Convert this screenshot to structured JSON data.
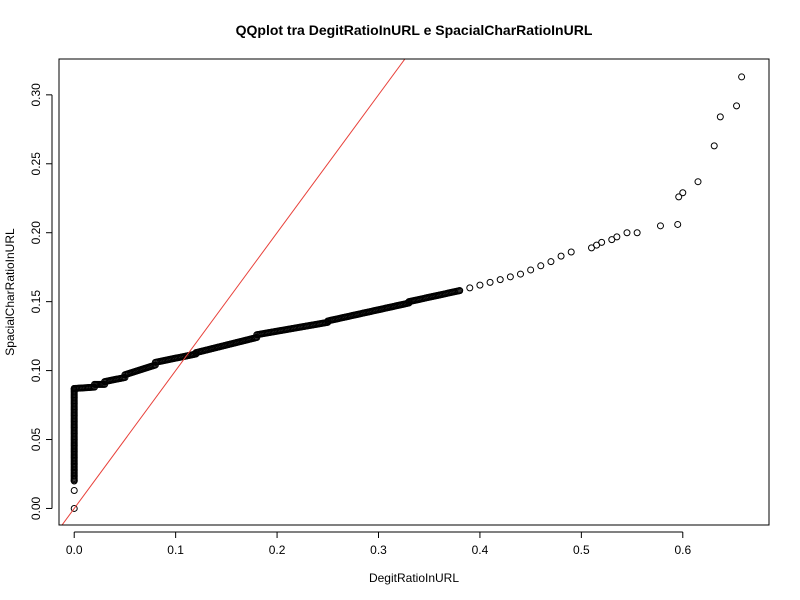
{
  "chart_data": {
    "type": "scatter",
    "title": "QQplot tra DegitRatioInURL e SpacialCharRatioInURL",
    "xlabel": "DegitRatioInURL",
    "ylabel": "SpacialCharRatioInURL",
    "xlim": [
      -0.015,
      0.685
    ],
    "ylim": [
      -0.012,
      0.326
    ],
    "x_ticks": [
      0,
      0.1,
      0.2,
      0.3,
      0.4,
      0.5,
      0.6
    ],
    "x_tick_labels": [
      "0.0",
      "0.1",
      "0.2",
      "0.3",
      "0.4",
      "0.5",
      "0.6"
    ],
    "y_ticks": [
      0,
      0.05,
      0.1,
      0.15,
      0.2,
      0.25,
      0.3
    ],
    "y_tick_labels": [
      "0.00",
      "0.05",
      "0.10",
      "0.15",
      "0.20",
      "0.25",
      "0.30"
    ],
    "grid": false,
    "reference_line": {
      "slope": 1,
      "intercept": 0,
      "color": "#e8403a"
    },
    "point_color": "#000000",
    "dense_segments": [
      {
        "x": [
          0,
          0
        ],
        "y": [
          0.02,
          0.087
        ]
      },
      {
        "x": [
          0,
          0.02
        ],
        "y": [
          0.087,
          0.088
        ]
      },
      {
        "x": [
          0.02,
          0.03
        ],
        "y": [
          0.09,
          0.09
        ]
      },
      {
        "x": [
          0.03,
          0.05
        ],
        "y": [
          0.092,
          0.095
        ]
      },
      {
        "x": [
          0.05,
          0.08
        ],
        "y": [
          0.097,
          0.104
        ]
      },
      {
        "x": [
          0.08,
          0.12
        ],
        "y": [
          0.106,
          0.112
        ]
      },
      {
        "x": [
          0.12,
          0.18
        ],
        "y": [
          0.113,
          0.124
        ]
      },
      {
        "x": [
          0.18,
          0.25
        ],
        "y": [
          0.126,
          0.135
        ]
      },
      {
        "x": [
          0.25,
          0.33
        ],
        "y": [
          0.136,
          0.149
        ]
      },
      {
        "x": [
          0.33,
          0.38
        ],
        "y": [
          0.15,
          0.158
        ]
      }
    ],
    "points": [
      [
        0,
        0
      ],
      [
        0,
        0.013
      ],
      [
        0,
        0.02
      ],
      [
        0.38,
        0.158
      ],
      [
        0.39,
        0.16
      ],
      [
        0.4,
        0.162
      ],
      [
        0.41,
        0.164
      ],
      [
        0.42,
        0.166
      ],
      [
        0.43,
        0.168
      ],
      [
        0.44,
        0.17
      ],
      [
        0.45,
        0.173
      ],
      [
        0.46,
        0.176
      ],
      [
        0.47,
        0.179
      ],
      [
        0.48,
        0.183
      ],
      [
        0.49,
        0.186
      ],
      [
        0.51,
        0.189
      ],
      [
        0.515,
        0.191
      ],
      [
        0.52,
        0.193
      ],
      [
        0.53,
        0.195
      ],
      [
        0.535,
        0.197
      ],
      [
        0.545,
        0.2
      ],
      [
        0.555,
        0.2
      ],
      [
        0.578,
        0.205
      ],
      [
        0.595,
        0.206
      ],
      [
        0.596,
        0.226
      ],
      [
        0.6,
        0.229
      ],
      [
        0.615,
        0.237
      ],
      [
        0.631,
        0.263
      ],
      [
        0.637,
        0.284
      ],
      [
        0.653,
        0.292
      ],
      [
        0.658,
        0.313
      ]
    ]
  }
}
